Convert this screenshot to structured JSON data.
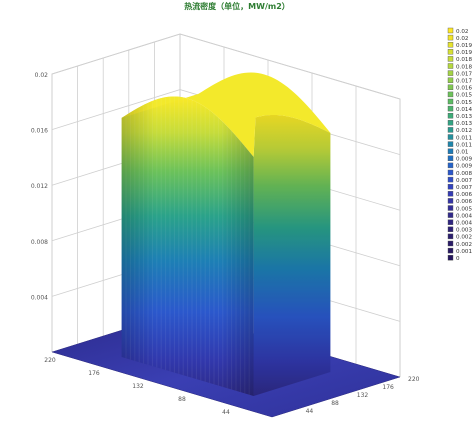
{
  "chart_data": {
    "type": "surface3d",
    "title": "热流密度（单位，MW/m2）",
    "z_axis": {
      "ticks": [
        "0.004",
        "0.008",
        "0.012",
        "0.016",
        "0.02"
      ],
      "range": [
        0,
        0.02
      ]
    },
    "x_axis": {
      "ticks": [
        "220",
        "176",
        "132",
        "88",
        "44"
      ],
      "range": [
        0,
        220
      ]
    },
    "y_axis": {
      "ticks": [
        "44",
        "88",
        "132",
        "176",
        "220"
      ],
      "range": [
        0,
        220
      ]
    },
    "surface": {
      "peak_value": 0.02,
      "plateau_x_range": [
        44,
        176
      ],
      "plateau_y_range": [
        44,
        176
      ],
      "base_value": 0
    },
    "legend": {
      "placement": "right",
      "items": [
        {
          "label": "0.02",
          "color": "#fde725"
        },
        {
          "label": "0.02",
          "color": "#f2e42a"
        },
        {
          "label": "0.019",
          "color": "#e5e22f"
        },
        {
          "label": "0.019",
          "color": "#d6df35"
        },
        {
          "label": "0.018",
          "color": "#c6dc3b"
        },
        {
          "label": "0.018",
          "color": "#b5d840"
        },
        {
          "label": "0.017",
          "color": "#a4d346"
        },
        {
          "label": "0.017",
          "color": "#92ce4c"
        },
        {
          "label": "0.016",
          "color": "#80c853"
        },
        {
          "label": "0.015",
          "color": "#6dc25a"
        },
        {
          "label": "0.015",
          "color": "#5cbb63"
        },
        {
          "label": "0.014",
          "color": "#4cb46d"
        },
        {
          "label": "0.013",
          "color": "#3dac78"
        },
        {
          "label": "0.013",
          "color": "#32a484"
        },
        {
          "label": "0.012",
          "color": "#2a9b91"
        },
        {
          "label": "0.011",
          "color": "#24919e"
        },
        {
          "label": "0.011",
          "color": "#1f86ab"
        },
        {
          "label": "0.01",
          "color": "#1d7bb7"
        },
        {
          "label": "0.009",
          "color": "#1f6fc2"
        },
        {
          "label": "0.009",
          "color": "#2463c9"
        },
        {
          "label": "0.008",
          "color": "#2a57cc"
        },
        {
          "label": "0.007",
          "color": "#2f4dc8"
        },
        {
          "label": "0.007",
          "color": "#3243c0"
        },
        {
          "label": "0.006",
          "color": "#343bb4"
        },
        {
          "label": "0.006",
          "color": "#3434a6"
        },
        {
          "label": "0.005",
          "color": "#332e98"
        },
        {
          "label": "0.004",
          "color": "#312a8b"
        },
        {
          "label": "0.004",
          "color": "#2f2580"
        },
        {
          "label": "0.003",
          "color": "#2d2176"
        },
        {
          "label": "0.002",
          "color": "#2b1e6e"
        },
        {
          "label": "0.002",
          "color": "#291b67"
        },
        {
          "label": "0.001",
          "color": "#271862"
        },
        {
          "label": "0",
          "color": "#25165e"
        }
      ]
    }
  }
}
